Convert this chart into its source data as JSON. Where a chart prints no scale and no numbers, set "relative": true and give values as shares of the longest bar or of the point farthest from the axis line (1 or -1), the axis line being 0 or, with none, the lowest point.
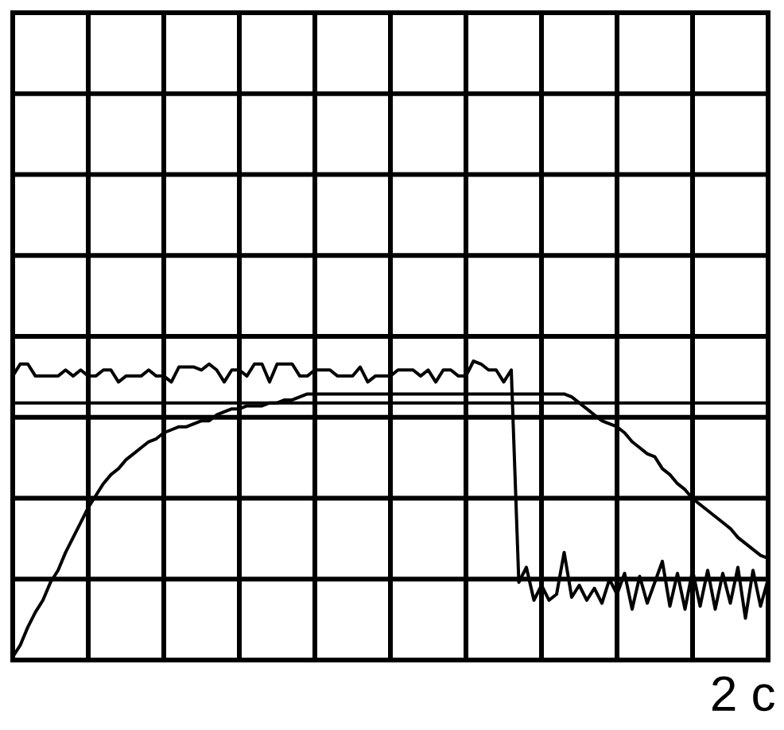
{
  "chart_data": {
    "type": "line",
    "relative": true,
    "xlabel": "2 с",
    "grid": true,
    "line_style": "solid",
    "categories": [
      null,
      null,
      null,
      null,
      null,
      null,
      null,
      null,
      null,
      null,
      null,
      null,
      null,
      null,
      null,
      null,
      null,
      null,
      null,
      null,
      null,
      null,
      null,
      null,
      null,
      null,
      null,
      null,
      null,
      null,
      null,
      null,
      null,
      null,
      null,
      null,
      null,
      null,
      null,
      null,
      null,
      null,
      null,
      null,
      null,
      null,
      null,
      null,
      null,
      null,
      null,
      null,
      null,
      null,
      null,
      null,
      null,
      null,
      null,
      null,
      null,
      null,
      null,
      null,
      null,
      null,
      null,
      null,
      null,
      null,
      null,
      null,
      null,
      null,
      null,
      null,
      null,
      null,
      null,
      null,
      null,
      null,
      null,
      null,
      null,
      null,
      null,
      null,
      null,
      null,
      null,
      null,
      null,
      null,
      null,
      null,
      null,
      null,
      null,
      null,
      null
    ],
    "series": [
      {
        "color": "#000000",
        "values": [
          0.01,
          0.05,
          0.11,
          0.16,
          0.2,
          0.26,
          0.3,
          0.36,
          0.41,
          0.46,
          0.51,
          0.55,
          0.59,
          0.62,
          0.64,
          0.67,
          0.69,
          0.71,
          0.73,
          0.74,
          0.76,
          0.77,
          0.78,
          0.78,
          0.79,
          0.8,
          0.8,
          0.82,
          0.83,
          0.84,
          0.84,
          0.85,
          0.85,
          0.85,
          0.86,
          0.86,
          0.87,
          0.87,
          0.88,
          0.89,
          0.89,
          0.89,
          0.89,
          0.89,
          0.89,
          0.89,
          0.89,
          0.89,
          0.89,
          0.89,
          0.89,
          0.89,
          0.89,
          0.89,
          0.89,
          0.89,
          0.89,
          0.89,
          0.89,
          0.89,
          0.89,
          0.89,
          0.89,
          0.89,
          0.89,
          0.89,
          0.89,
          0.89,
          0.89,
          0.89,
          0.89,
          0.89,
          0.89,
          0.89,
          0.88,
          0.86,
          0.84,
          0.82,
          0.8,
          0.79,
          0.78,
          0.76,
          0.73,
          0.71,
          0.69,
          0.68,
          0.64,
          0.62,
          0.59,
          0.57,
          0.54,
          0.52,
          0.5,
          0.48,
          0.46,
          0.44,
          0.41,
          0.39,
          0.37,
          0.35,
          0.34
        ]
      },
      {
        "color": "#000000",
        "values": [
          0.95,
          0.99,
          0.99,
          0.95,
          0.95,
          0.95,
          0.95,
          0.97,
          0.95,
          0.97,
          0.95,
          0.95,
          0.97,
          0.97,
          0.93,
          0.95,
          0.95,
          0.95,
          0.97,
          0.95,
          0.95,
          0.93,
          0.98,
          0.98,
          0.98,
          0.97,
          0.99,
          0.97,
          0.93,
          0.97,
          0.97,
          0.95,
          0.99,
          0.99,
          0.93,
          0.99,
          0.99,
          0.99,
          0.95,
          0.95,
          0.97,
          0.97,
          0.97,
          0.95,
          0.95,
          0.95,
          0.98,
          0.93,
          0.95,
          0.95,
          0.95,
          0.97,
          0.97,
          0.97,
          0.95,
          0.97,
          0.93,
          0.97,
          0.97,
          0.95,
          0.95,
          1.0,
          0.99,
          0.97,
          0.97,
          0.93,
          0.97,
          0.26,
          0.31,
          0.2,
          0.25,
          0.2,
          0.22,
          0.36,
          0.21,
          0.25,
          0.2,
          0.24,
          0.19,
          0.27,
          0.22,
          0.29,
          0.17,
          0.28,
          0.19,
          0.26,
          0.33,
          0.18,
          0.29,
          0.17,
          0.3,
          0.18,
          0.3,
          0.17,
          0.29,
          0.19,
          0.31,
          0.14,
          0.3,
          0.18,
          0.27
        ]
      }
    ],
    "ref_lines": [
      {
        "axis": "y",
        "value": 0.86,
        "color": "#000000"
      }
    ]
  }
}
